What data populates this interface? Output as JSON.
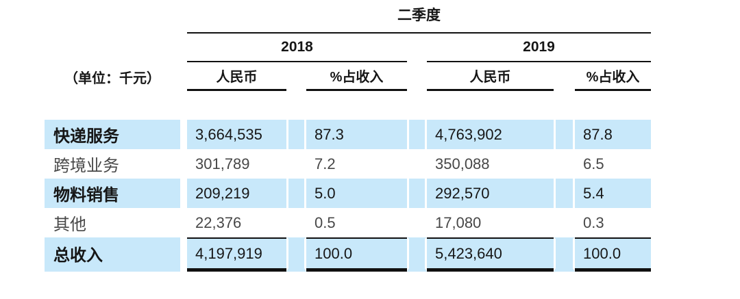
{
  "title": "二季度",
  "unit_label": "（单位：千元）",
  "years": {
    "y2018": "2018",
    "y2019": "2019"
  },
  "headers": {
    "rmb": "人民币",
    "pct": "%占收入"
  },
  "rows": [
    {
      "label": "快递服务",
      "rmb_2018": "3,664,535",
      "pct_2018": "87.3",
      "rmb_2019": "4,763,902",
      "pct_2019": "87.8",
      "highlight": true
    },
    {
      "label": "跨境业务",
      "rmb_2018": "301,789",
      "pct_2018": "7.2",
      "rmb_2019": "350,088",
      "pct_2019": "6.5",
      "highlight": false
    },
    {
      "label": "物料销售",
      "rmb_2018": "209,219",
      "pct_2018": "5.0",
      "rmb_2019": "292,570",
      "pct_2019": "5.4",
      "highlight": true
    },
    {
      "label": "其他",
      "rmb_2018": "22,376",
      "pct_2018": "0.5",
      "rmb_2019": "17,080",
      "pct_2019": "0.3",
      "highlight": false
    },
    {
      "label": "总收入",
      "rmb_2018": "4,197,919",
      "pct_2018": "100.0",
      "rmb_2019": "5,423,640",
      "pct_2019": "100.0",
      "highlight": true
    }
  ],
  "colors": {
    "highlight_row": "#c8e8fa",
    "rule": "#111111"
  },
  "chart_data": {
    "type": "table",
    "title": "二季度",
    "unit": "（单位：千元）",
    "column_groups": [
      "2018",
      "2019"
    ],
    "columns": [
      "人民币",
      "%占收入",
      "人民币",
      "%占收入"
    ],
    "rows": [
      [
        "快递服务",
        "3,664,535",
        "87.3",
        "4,763,902",
        "87.8"
      ],
      [
        "跨境业务",
        "301,789",
        "7.2",
        "350,088",
        "6.5"
      ],
      [
        "物料销售",
        "209,219",
        "5.0",
        "292,570",
        "5.4"
      ],
      [
        "其他",
        "22,376",
        "0.5",
        "17,080",
        "0.3"
      ],
      [
        "总收入",
        "4,197,919",
        "100.0",
        "5,423,640",
        "100.0"
      ]
    ]
  }
}
